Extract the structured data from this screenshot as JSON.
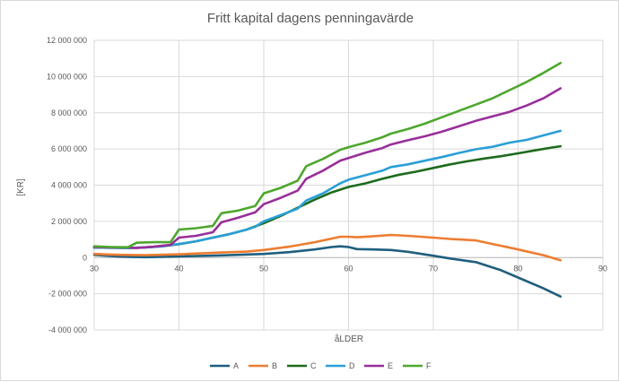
{
  "chart_data": {
    "type": "line",
    "title": "Fritt kapital dagens penningavärde",
    "xlabel": "åLDER",
    "ylabel": "[KR]",
    "xlim": [
      30,
      90
    ],
    "ylim": [
      -4000000,
      12000000
    ],
    "x_ticks": [
      30,
      40,
      50,
      60,
      70,
      80,
      90
    ],
    "x_tick_labels": [
      "30",
      "40",
      "50",
      "60",
      "70",
      "80",
      "90"
    ],
    "y_ticks": [
      -4000000,
      -2000000,
      0,
      2000000,
      4000000,
      6000000,
      8000000,
      10000000,
      12000000
    ],
    "y_tick_labels": [
      "-4 000 000",
      "-2 000 000",
      "0",
      "2 000 000",
      "4 000 000",
      "6 000 000",
      "8 000 000",
      "10 000 000",
      "12 000 000"
    ],
    "grid": true,
    "legend_position": "bottom",
    "series": [
      {
        "name": "A",
        "color": "#1f5f7e",
        "points": [
          [
            30,
            150000
          ],
          [
            33,
            50000
          ],
          [
            36,
            20000
          ],
          [
            40,
            60000
          ],
          [
            45,
            120000
          ],
          [
            50,
            200000
          ],
          [
            53,
            300000
          ],
          [
            56,
            450000
          ],
          [
            58,
            580000
          ],
          [
            59,
            620000
          ],
          [
            60,
            580000
          ],
          [
            61,
            470000
          ],
          [
            63,
            450000
          ],
          [
            65,
            420000
          ],
          [
            67,
            320000
          ],
          [
            70,
            100000
          ],
          [
            72,
            -50000
          ],
          [
            75,
            -250000
          ],
          [
            78,
            -700000
          ],
          [
            80,
            -1100000
          ],
          [
            83,
            -1700000
          ],
          [
            85,
            -2150000
          ]
        ]
      },
      {
        "name": "B",
        "color": "#ed7d31",
        "points": [
          [
            30,
            200000
          ],
          [
            33,
            150000
          ],
          [
            36,
            130000
          ],
          [
            40,
            180000
          ],
          [
            45,
            280000
          ],
          [
            48,
            330000
          ],
          [
            50,
            420000
          ],
          [
            53,
            600000
          ],
          [
            56,
            850000
          ],
          [
            58,
            1050000
          ],
          [
            59,
            1150000
          ],
          [
            60,
            1150000
          ],
          [
            61,
            1120000
          ],
          [
            63,
            1180000
          ],
          [
            65,
            1250000
          ],
          [
            67,
            1200000
          ],
          [
            70,
            1100000
          ],
          [
            72,
            1030000
          ],
          [
            75,
            950000
          ],
          [
            78,
            650000
          ],
          [
            80,
            450000
          ],
          [
            83,
            130000
          ],
          [
            85,
            -150000
          ]
        ]
      },
      {
        "name": "C",
        "color": "#1d6b1d",
        "points": [
          [
            30,
            550000
          ],
          [
            32,
            540000
          ],
          [
            34,
            530000
          ],
          [
            36,
            560000
          ],
          [
            38,
            620000
          ],
          [
            40,
            740000
          ],
          [
            42,
            900000
          ],
          [
            44,
            1100000
          ],
          [
            46,
            1300000
          ],
          [
            48,
            1550000
          ],
          [
            50,
            1900000
          ],
          [
            52,
            2300000
          ],
          [
            54,
            2750000
          ],
          [
            56,
            3200000
          ],
          [
            58,
            3600000
          ],
          [
            60,
            3900000
          ],
          [
            62,
            4100000
          ],
          [
            64,
            4350000
          ],
          [
            66,
            4580000
          ],
          [
            68,
            4750000
          ],
          [
            70,
            4950000
          ],
          [
            72,
            5150000
          ],
          [
            74,
            5320000
          ],
          [
            76,
            5470000
          ],
          [
            78,
            5600000
          ],
          [
            80,
            5760000
          ],
          [
            82,
            5920000
          ],
          [
            84,
            6080000
          ],
          [
            85,
            6150000
          ]
        ]
      },
      {
        "name": "D",
        "color": "#2a9fd6",
        "points": [
          [
            30,
            550000
          ],
          [
            32,
            540000
          ],
          [
            34,
            530000
          ],
          [
            36,
            560000
          ],
          [
            38,
            620000
          ],
          [
            40,
            750000
          ],
          [
            42,
            900000
          ],
          [
            44,
            1100000
          ],
          [
            46,
            1300000
          ],
          [
            48,
            1550000
          ],
          [
            49,
            1700000
          ],
          [
            50,
            2000000
          ],
          [
            52,
            2350000
          ],
          [
            54,
            2700000
          ],
          [
            55,
            3150000
          ],
          [
            57,
            3550000
          ],
          [
            59,
            4100000
          ],
          [
            60,
            4300000
          ],
          [
            62,
            4550000
          ],
          [
            64,
            4800000
          ],
          [
            65,
            5000000
          ],
          [
            67,
            5150000
          ],
          [
            69,
            5350000
          ],
          [
            71,
            5550000
          ],
          [
            73,
            5780000
          ],
          [
            75,
            5980000
          ],
          [
            77,
            6120000
          ],
          [
            79,
            6350000
          ],
          [
            81,
            6500000
          ],
          [
            83,
            6750000
          ],
          [
            85,
            7000000
          ]
        ]
      },
      {
        "name": "E",
        "color": "#982f9a",
        "points": [
          [
            30,
            580000
          ],
          [
            32,
            560000
          ],
          [
            34,
            560000
          ],
          [
            35,
            530000
          ],
          [
            37,
            600000
          ],
          [
            39,
            700000
          ],
          [
            40,
            1100000
          ],
          [
            42,
            1200000
          ],
          [
            44,
            1400000
          ],
          [
            45,
            1950000
          ],
          [
            47,
            2200000
          ],
          [
            49,
            2500000
          ],
          [
            50,
            2950000
          ],
          [
            52,
            3300000
          ],
          [
            54,
            3700000
          ],
          [
            55,
            4350000
          ],
          [
            57,
            4800000
          ],
          [
            59,
            5350000
          ],
          [
            60,
            5500000
          ],
          [
            62,
            5800000
          ],
          [
            64,
            6050000
          ],
          [
            65,
            6250000
          ],
          [
            67,
            6480000
          ],
          [
            69,
            6700000
          ],
          [
            71,
            6950000
          ],
          [
            73,
            7250000
          ],
          [
            75,
            7550000
          ],
          [
            77,
            7800000
          ],
          [
            79,
            8050000
          ],
          [
            81,
            8400000
          ],
          [
            83,
            8800000
          ],
          [
            85,
            9350000
          ]
        ]
      },
      {
        "name": "F",
        "color": "#4ea72e",
        "points": [
          [
            30,
            620000
          ],
          [
            32,
            580000
          ],
          [
            34,
            570000
          ],
          [
            35,
            820000
          ],
          [
            37,
            850000
          ],
          [
            39,
            850000
          ],
          [
            40,
            1550000
          ],
          [
            42,
            1620000
          ],
          [
            44,
            1750000
          ],
          [
            45,
            2450000
          ],
          [
            47,
            2600000
          ],
          [
            49,
            2850000
          ],
          [
            50,
            3550000
          ],
          [
            52,
            3850000
          ],
          [
            54,
            4250000
          ],
          [
            55,
            5050000
          ],
          [
            57,
            5450000
          ],
          [
            59,
            5950000
          ],
          [
            60,
            6100000
          ],
          [
            62,
            6350000
          ],
          [
            64,
            6650000
          ],
          [
            65,
            6850000
          ],
          [
            67,
            7100000
          ],
          [
            69,
            7400000
          ],
          [
            71,
            7750000
          ],
          [
            73,
            8100000
          ],
          [
            75,
            8450000
          ],
          [
            77,
            8800000
          ],
          [
            79,
            9250000
          ],
          [
            81,
            9700000
          ],
          [
            83,
            10200000
          ],
          [
            85,
            10750000
          ]
        ]
      }
    ]
  }
}
